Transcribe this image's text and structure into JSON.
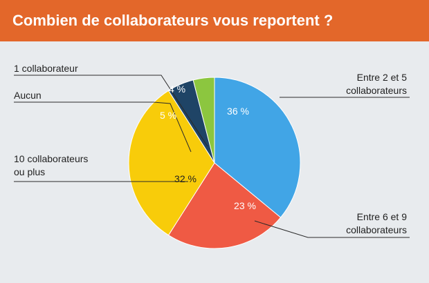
{
  "header": {
    "title": "Combien de collaborateurs vous reportent ?"
  },
  "colors": {
    "header_bg": "#e3672a",
    "background": "#e8ebee"
  },
  "chart_data": {
    "type": "pie",
    "title": "Combien de collaborateurs vous reportent ?",
    "start_angle_deg": 0,
    "direction": "clockwise",
    "slices": [
      {
        "label": [
          "Entre 2 et 5",
          "collaborateurs"
        ],
        "value": 36,
        "value_label": "36 %",
        "color": "#41a5e6",
        "pct_color": "#ffffff"
      },
      {
        "label": [
          "Entre 6 et 9",
          "collaborateurs"
        ],
        "value": 23,
        "value_label": "23 %",
        "color": "#ef5a44",
        "pct_color": "#ffffff"
      },
      {
        "label": [
          "10 collaborateurs",
          "ou plus"
        ],
        "value": 32,
        "value_label": "32 %",
        "color": "#f8cc0a",
        "pct_color": "#1f1f1f"
      },
      {
        "label": [
          "Aucun"
        ],
        "value": 5,
        "value_label": "5 %",
        "color": "#1f4466",
        "pct_color": "#ffffff"
      },
      {
        "label": [
          "1 collaborateur"
        ],
        "value": 4,
        "value_label": "4 %",
        "color": "#8cc63f",
        "pct_color": "#ffffff"
      }
    ]
  }
}
